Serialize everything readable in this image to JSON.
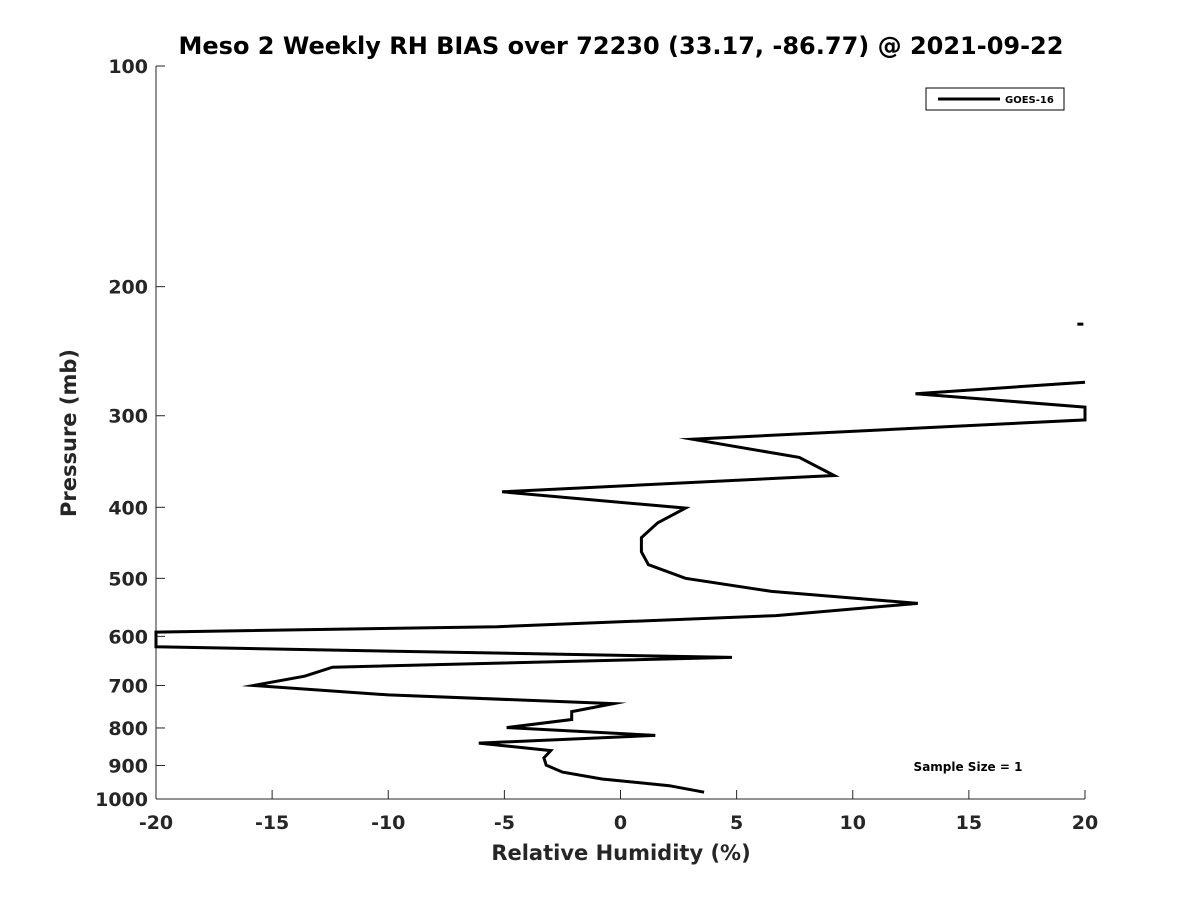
{
  "chart_data": {
    "type": "line",
    "title": "Meso 2 Weekly RH BIAS over 72230 (33.17, -86.77) @ 2021-09-22",
    "xlabel": "Relative Humidity (%)",
    "ylabel": "Pressure (mb)",
    "xlim": [
      -20,
      20
    ],
    "ylim": [
      100,
      1000
    ],
    "y_scale": "log",
    "y_reversed": true,
    "x_ticks": [
      -20,
      -15,
      -10,
      -5,
      0,
      5,
      10,
      15,
      20
    ],
    "x_tick_labels": [
      "-20",
      "-15",
      "-10",
      "-5",
      "0",
      "5",
      "10",
      "15",
      "20"
    ],
    "y_ticks": [
      100,
      200,
      300,
      400,
      500,
      600,
      700,
      800,
      900,
      1000
    ],
    "y_tick_labels": [
      "100",
      "200",
      "300",
      "400",
      "500",
      "600",
      "700",
      "800",
      "900",
      "1000"
    ],
    "grid": false,
    "legend_position": "top-right",
    "annotation": "Sample Size = 1",
    "series": [
      {
        "name": "GOES-16",
        "color": "#000000",
        "segments": [
          [
            {
              "x": 19.8,
              "y": 225
            }
          ],
          [
            {
              "x": 20.0,
              "y": 270
            },
            {
              "x": 12.7,
              "y": 280
            },
            {
              "x": 20.0,
              "y": 292
            },
            {
              "x": 20.0,
              "y": 304
            },
            {
              "x": 3.1,
              "y": 323
            },
            {
              "x": 7.7,
              "y": 342
            },
            {
              "x": 9.2,
              "y": 362
            },
            {
              "x": -5.1,
              "y": 381
            },
            {
              "x": 2.8,
              "y": 401
            },
            {
              "x": 1.6,
              "y": 420
            },
            {
              "x": 0.9,
              "y": 440
            },
            {
              "x": 0.9,
              "y": 460
            },
            {
              "x": 1.2,
              "y": 479
            },
            {
              "x": 2.8,
              "y": 500
            },
            {
              "x": 6.5,
              "y": 521
            },
            {
              "x": 12.8,
              "y": 541
            },
            {
              "x": 6.7,
              "y": 562
            },
            {
              "x": -5.3,
              "y": 582
            },
            {
              "x": -20.0,
              "y": 592
            },
            {
              "x": -20.0,
              "y": 620
            },
            {
              "x": 4.8,
              "y": 641
            },
            {
              "x": -12.4,
              "y": 661
            },
            {
              "x": -13.6,
              "y": 680
            },
            {
              "x": -15.8,
              "y": 700
            },
            {
              "x": -10.0,
              "y": 721
            },
            {
              "x": -0.3,
              "y": 741
            },
            {
              "x": -2.1,
              "y": 760
            },
            {
              "x": -2.1,
              "y": 779
            },
            {
              "x": -4.9,
              "y": 799
            },
            {
              "x": 1.5,
              "y": 819
            },
            {
              "x": -6.1,
              "y": 839
            },
            {
              "x": -3.0,
              "y": 859
            },
            {
              "x": -3.3,
              "y": 879
            },
            {
              "x": -3.2,
              "y": 899
            },
            {
              "x": -2.5,
              "y": 919
            },
            {
              "x": -0.8,
              "y": 939
            },
            {
              "x": 2.1,
              "y": 959
            },
            {
              "x": 3.6,
              "y": 979
            }
          ]
        ]
      }
    ]
  }
}
